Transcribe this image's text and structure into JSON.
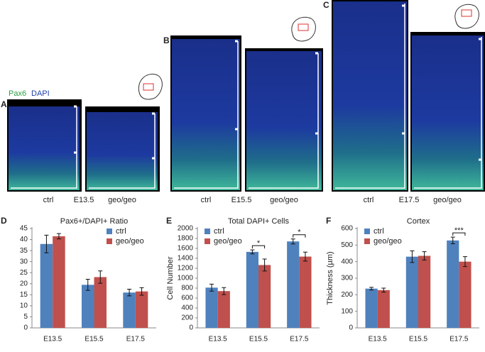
{
  "stain": {
    "marker": "Pax6",
    "counterstain": "DAPI"
  },
  "micrographs": [
    {
      "label": "A",
      "stage": "E13.5",
      "control": "ctrl",
      "mutant": "geo/geo"
    },
    {
      "label": "B",
      "stage": "E15.5",
      "control": "ctrl",
      "mutant": "geo/geo"
    },
    {
      "label": "C",
      "stage": "E17.5",
      "control": "ctrl",
      "mutant": "geo/geo"
    }
  ],
  "chart_data": [
    {
      "type": "bar",
      "panel_label": "D",
      "title": "Pax6+/DAPI+ Ratio",
      "categories": [
        "E13.5",
        "E15.5",
        "E17.5"
      ],
      "series": [
        {
          "name": "ctrl",
          "color": "#4f81bd",
          "values": [
            38,
            19.5,
            16
          ],
          "errors": [
            4,
            2.5,
            1.5
          ]
        },
        {
          "name": "geo/geo",
          "color": "#c0504d",
          "values": [
            41.5,
            23,
            16.5
          ],
          "errors": [
            1.2,
            2.8,
            1.7
          ]
        }
      ],
      "ylim": [
        0,
        45
      ],
      "yticks": [
        0,
        5,
        10,
        15,
        20,
        25,
        30,
        35,
        40,
        45
      ],
      "significance": [
        null,
        null,
        null
      ]
    },
    {
      "type": "bar",
      "panel_label": "E",
      "title": "Total DAPI+ Cells",
      "ylabel": "Cell Number",
      "categories": [
        "E13.5",
        "E15.5",
        "E17.5"
      ],
      "series": [
        {
          "name": "ctrl",
          "color": "#4f81bd",
          "values": [
            810,
            1530,
            1740
          ],
          "errors": [
            70,
            40,
            50
          ]
        },
        {
          "name": "geo/geo",
          "color": "#c0504d",
          "values": [
            740,
            1265,
            1435
          ],
          "errors": [
            70,
            120,
            90
          ]
        }
      ],
      "ylim": [
        0,
        2000
      ],
      "yticks": [
        0,
        200,
        400,
        600,
        800,
        1000,
        1200,
        1400,
        1600,
        1800,
        2000
      ],
      "significance": [
        null,
        "*",
        "*"
      ]
    },
    {
      "type": "bar",
      "panel_label": "F",
      "title": "Cortex",
      "ylabel": "Thickness (µm)",
      "categories": [
        "E13.5",
        "E15.5",
        "E17.5"
      ],
      "series": [
        {
          "name": "ctrl",
          "color": "#4f81bd",
          "values": [
            237,
            430,
            528
          ],
          "errors": [
            8,
            35,
            20
          ]
        },
        {
          "name": "geo/geo",
          "color": "#c0504d",
          "values": [
            228,
            435,
            400
          ],
          "errors": [
            12,
            25,
            30
          ]
        }
      ],
      "ylim": [
        0,
        600
      ],
      "yticks": [
        0,
        100,
        200,
        300,
        400,
        500,
        600
      ],
      "significance": [
        null,
        null,
        "***"
      ]
    }
  ]
}
